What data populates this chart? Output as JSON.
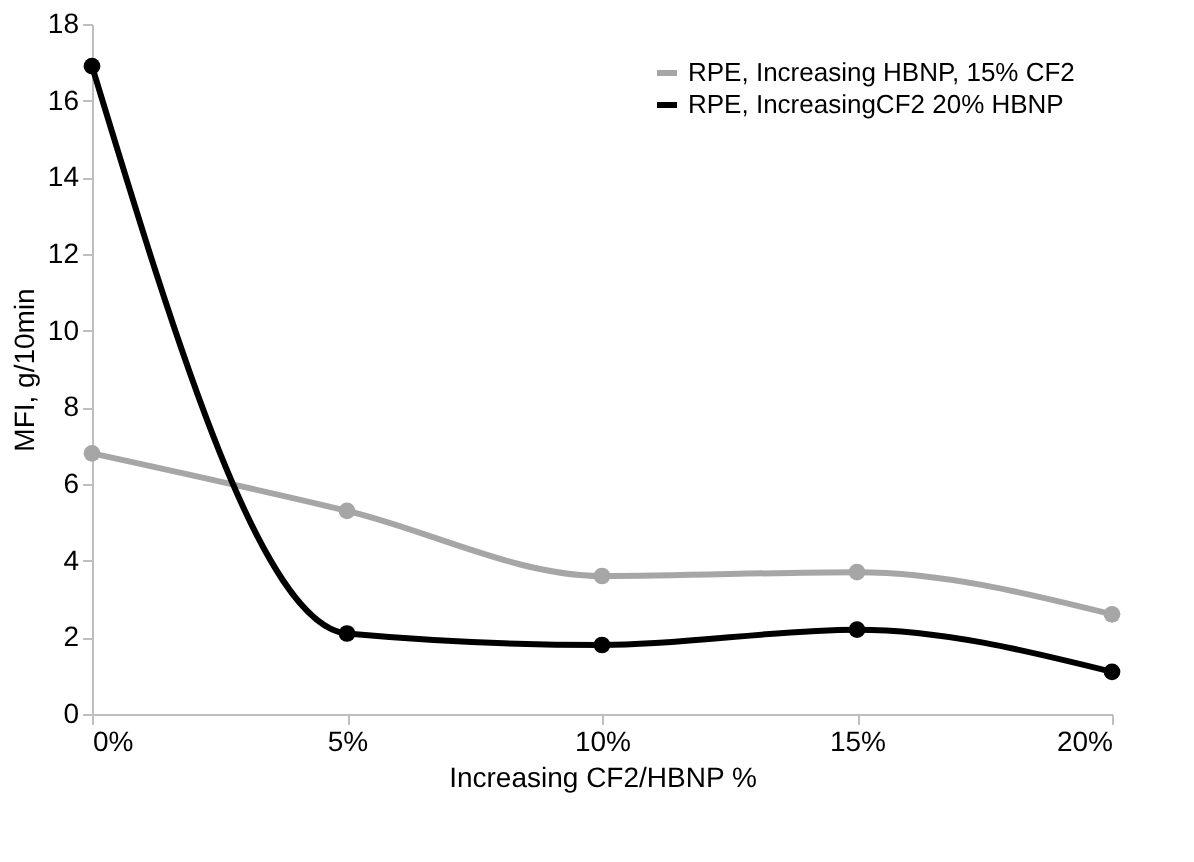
{
  "chart_data": {
    "type": "line",
    "xlabel": "Increasing CF2/HBNP %",
    "ylabel": "MFI, g/10min",
    "categories": [
      "0%",
      "5%",
      "10%",
      "15%",
      "20%"
    ],
    "series": [
      {
        "name": "RPE, Increasing HBNP, 15% CF2",
        "color": "#a6a6a6",
        "values": [
          6.8,
          5.3,
          3.6,
          3.7,
          2.6
        ]
      },
      {
        "name": "RPE, IncreasingCF2 20% HBNP",
        "color": "#000000",
        "values": [
          16.9,
          2.1,
          1.8,
          2.2,
          1.1
        ]
      }
    ],
    "ylim": [
      0,
      18
    ],
    "yticks": [
      0,
      2,
      4,
      6,
      8,
      10,
      12,
      14,
      16,
      18
    ],
    "grid": false,
    "legend": "top right",
    "marker": "circle",
    "line_style": "solid"
  }
}
